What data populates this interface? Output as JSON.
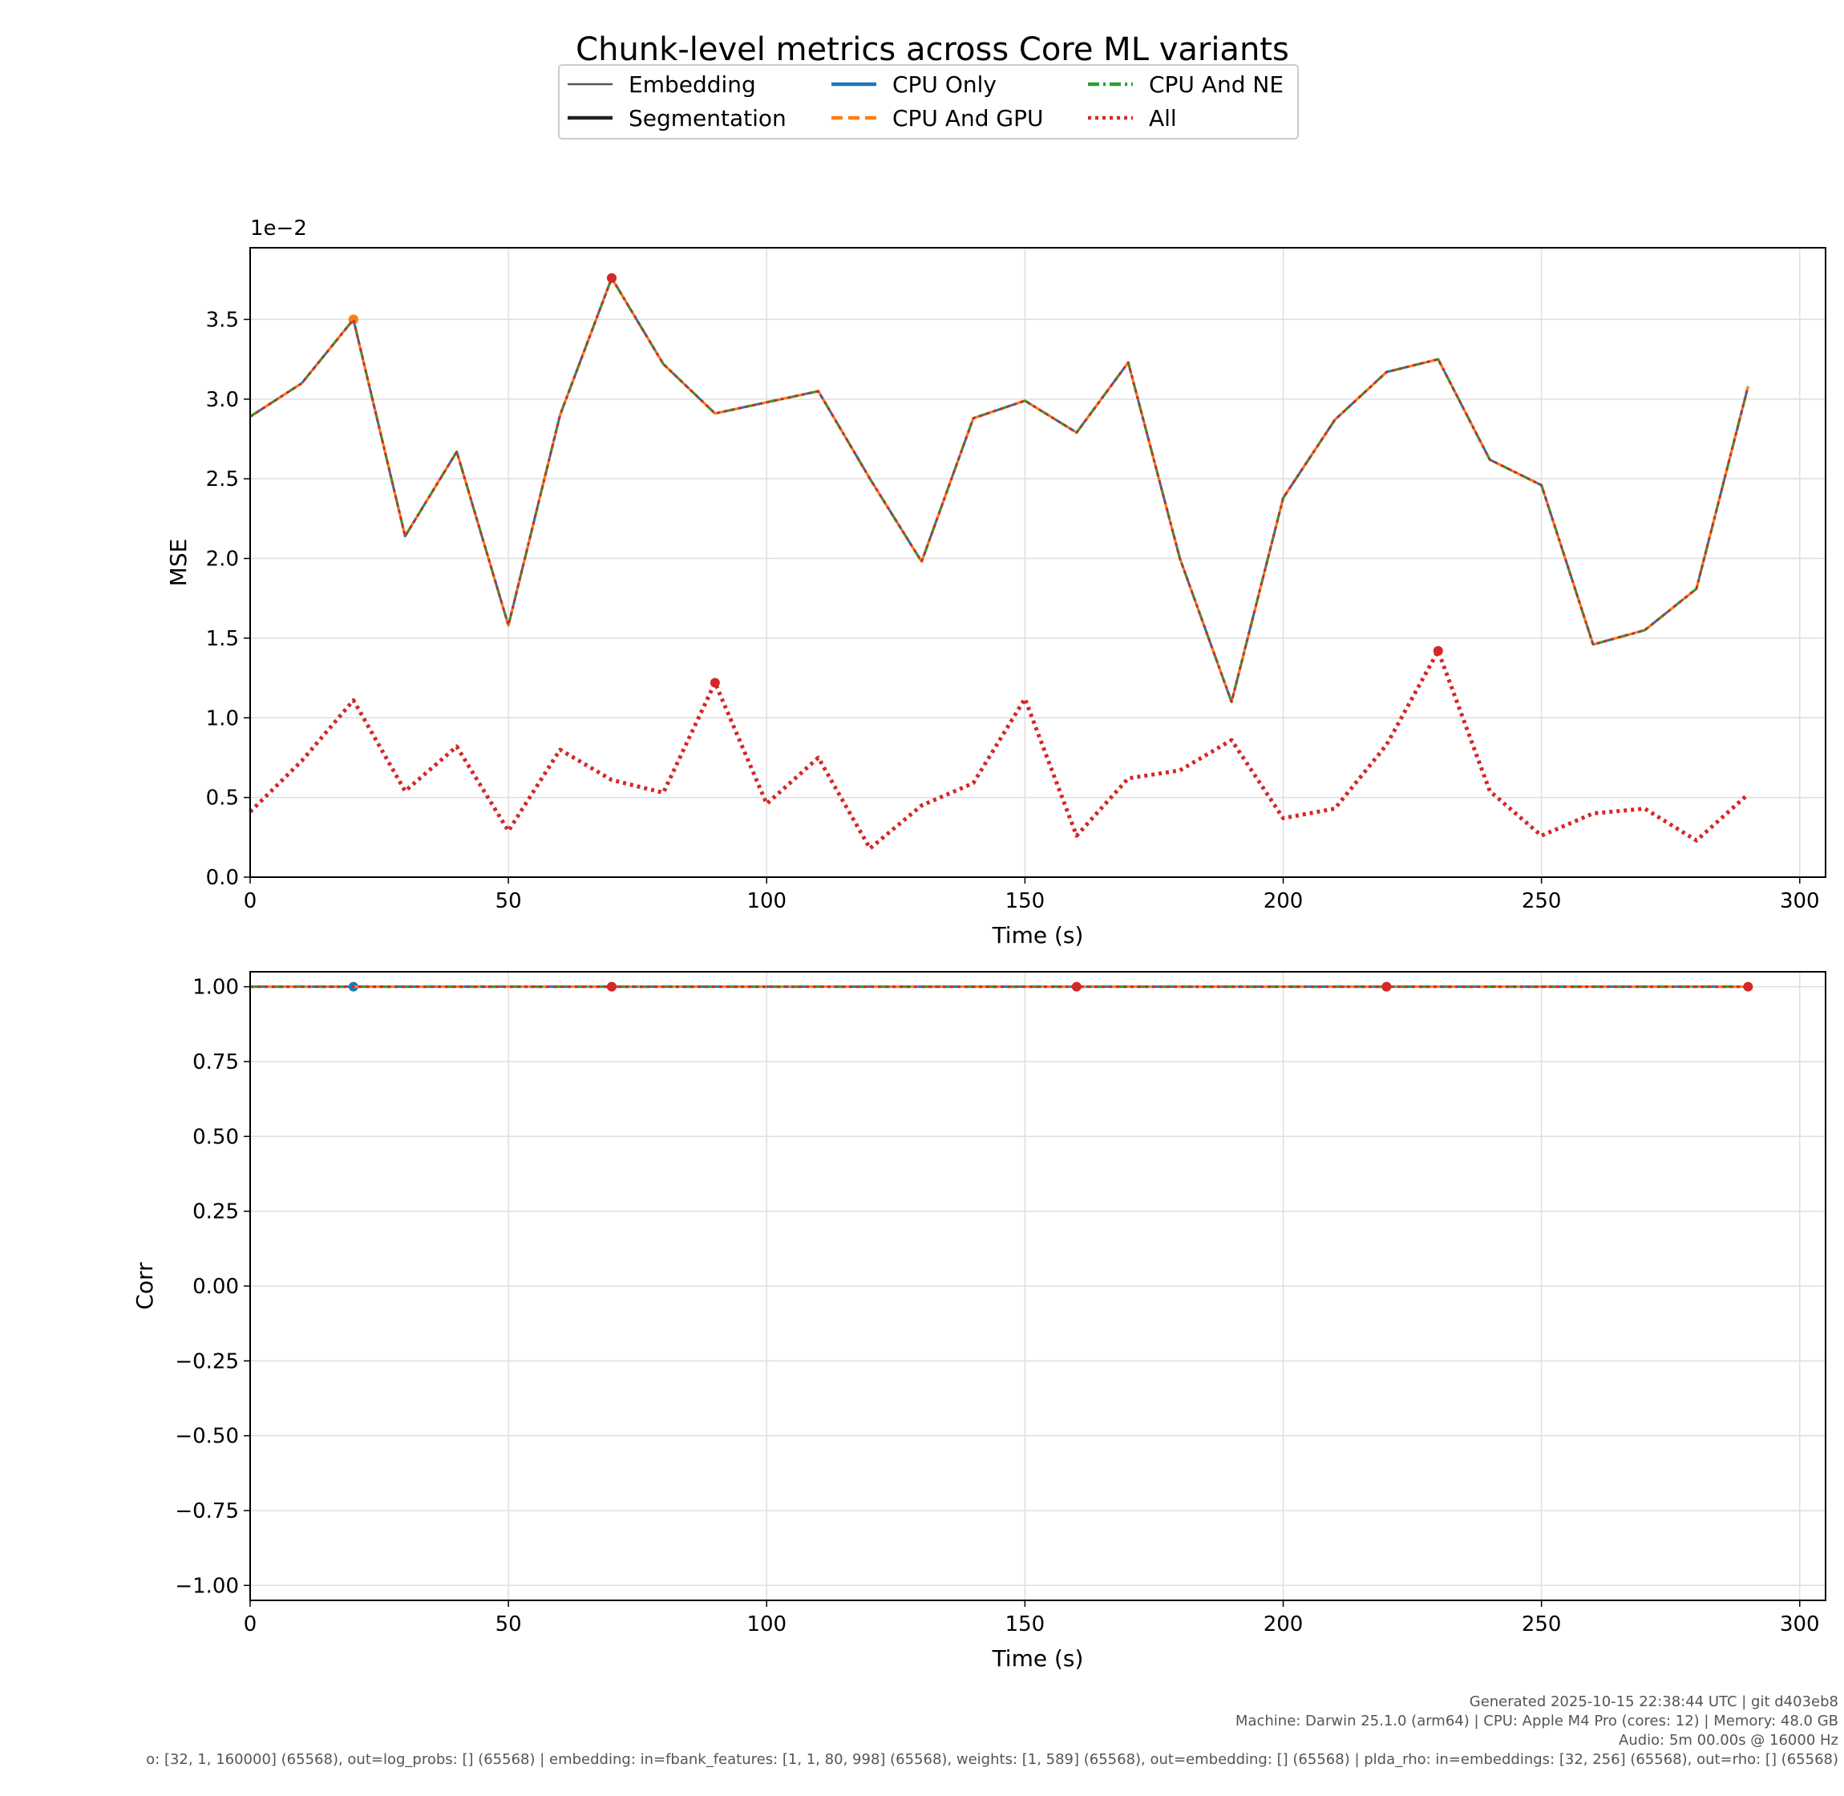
{
  "figure_title": "Chunk-level metrics across Core ML variants",
  "legend": {
    "entries": [
      {
        "label": "Embedding",
        "kind": "style",
        "style": "thin-solid"
      },
      {
        "label": "Segmentation",
        "kind": "style",
        "style": "thick-solid"
      },
      {
        "label": "CPU Only",
        "kind": "series",
        "color": "#1f77b4",
        "dash": "solid"
      },
      {
        "label": "CPU And GPU",
        "kind": "series",
        "color": "#ff7f0e",
        "dash": "dashed"
      },
      {
        "label": "CPU And NE",
        "kind": "series",
        "color": "#2ca02c",
        "dash": "dashdot"
      },
      {
        "label": "All",
        "kind": "series",
        "color": "#d62728",
        "dash": "dotted"
      }
    ]
  },
  "footer": {
    "line1": "Generated 2025-10-15 22:38:44 UTC | git d403eb8",
    "line2": "Machine: Darwin 25.1.0 (arm64) | CPU: Apple M4 Pro (cores: 12) | Memory: 48.0 GB",
    "line3": "Audio: 5m 00.00s @ 16000 Hz",
    "line4": "o: [32, 1, 160000] (65568), out=log_probs: [] (65568) | embedding: in=fbank_features: [1, 1, 80, 998] (65568), weights: [1, 589] (65568), out=embedding: [] (65568) | plda_rho: in=embeddings: [32, 256] (65568), out=rho: [] (65568)"
  },
  "chart_data": [
    {
      "type": "line",
      "xlabel": "Time (s)",
      "ylabel": "MSE",
      "offset_label": "1e−2",
      "xlim": [
        0,
        305
      ],
      "ylim": [
        0,
        3.95
      ],
      "xticks": [
        0,
        50,
        100,
        150,
        200,
        250,
        300
      ],
      "yticks": [
        0.0,
        0.5,
        1.0,
        1.5,
        2.0,
        2.5,
        3.0,
        3.5
      ],
      "ytick_labels": [
        "0.0",
        "0.5",
        "1.0",
        "1.5",
        "2.0",
        "2.5",
        "3.0",
        "3.5"
      ],
      "grid": true,
      "x": [
        0,
        10,
        20,
        30,
        40,
        50,
        60,
        70,
        80,
        90,
        100,
        110,
        120,
        130,
        140,
        150,
        160,
        170,
        180,
        190,
        200,
        210,
        220,
        230,
        240,
        250,
        260,
        270,
        280,
        290
      ],
      "series": [
        {
          "name": "CPU Only",
          "color": "#1f77b4",
          "dash": "solid",
          "width": 3,
          "values": [
            2.89,
            3.1,
            3.5,
            2.14,
            2.67,
            1.58,
            2.9,
            3.76,
            3.22,
            2.91,
            2.98,
            3.05,
            2.5,
            1.98,
            2.88,
            2.99,
            2.79,
            3.23,
            2.0,
            1.1,
            2.38,
            2.87,
            3.17,
            3.25,
            2.62,
            2.46,
            1.46,
            1.55,
            1.81,
            3.08
          ],
          "marker_x": 20
        },
        {
          "name": "CPU And GPU",
          "color": "#ff7f0e",
          "dash": "dashed",
          "width": 3,
          "values": [
            2.89,
            3.1,
            3.5,
            2.14,
            2.67,
            1.58,
            2.9,
            3.76,
            3.22,
            2.91,
            2.98,
            3.05,
            2.5,
            1.98,
            2.88,
            2.99,
            2.79,
            3.23,
            2.0,
            1.1,
            2.38,
            2.87,
            3.17,
            3.25,
            2.62,
            2.46,
            1.46,
            1.55,
            1.81,
            3.08
          ],
          "marker_x": 20
        },
        {
          "name": "CPU And NE",
          "color": "#2ca02c",
          "dash": "dashdot",
          "width": 3,
          "values": [
            2.89,
            3.1,
            3.5,
            2.14,
            2.67,
            1.58,
            2.9,
            3.76,
            3.22,
            2.91,
            2.98,
            3.05,
            2.5,
            1.98,
            2.88,
            2.99,
            2.79,
            3.23,
            2.0,
            1.1,
            2.38,
            2.87,
            3.17,
            3.25,
            2.62,
            2.46,
            1.46,
            1.55,
            1.81,
            3.08
          ],
          "marker_x": 70
        },
        {
          "name": "All",
          "color": "#d62728",
          "dash": "dotted",
          "width": 3,
          "values": [
            2.89,
            3.1,
            3.5,
            2.14,
            2.67,
            1.58,
            2.9,
            3.76,
            3.22,
            2.91,
            2.98,
            3.05,
            2.5,
            1.98,
            2.88,
            2.99,
            2.79,
            3.23,
            2.0,
            1.1,
            2.38,
            2.87,
            3.17,
            3.25,
            2.62,
            2.46,
            1.46,
            1.55,
            1.81,
            3.08
          ],
          "marker_x": 70
        },
        {
          "name": "All",
          "color": "#d62728",
          "dash": "dotted",
          "width": 5,
          "values": [
            0.41,
            0.73,
            1.11,
            0.54,
            0.82,
            0.29,
            0.8,
            0.61,
            0.53,
            1.22,
            0.46,
            0.75,
            0.18,
            0.45,
            0.59,
            1.12,
            0.26,
            0.62,
            0.67,
            0.86,
            0.37,
            0.43,
            0.83,
            1.42,
            0.54,
            0.26,
            0.4,
            0.43,
            0.23,
            0.52
          ],
          "marker_x": [
            90,
            230
          ]
        }
      ]
    },
    {
      "type": "line",
      "xlabel": "Time (s)",
      "ylabel": "Corr",
      "xlim": [
        0,
        305
      ],
      "ylim": [
        -1.05,
        1.05
      ],
      "xticks": [
        0,
        50,
        100,
        150,
        200,
        250,
        300
      ],
      "yticks": [
        -1.0,
        -0.75,
        -0.5,
        -0.25,
        0.0,
        0.25,
        0.5,
        0.75,
        1.0
      ],
      "ytick_labels": [
        "−1.00",
        "−0.75",
        "−0.50",
        "−0.25",
        "0.00",
        "0.25",
        "0.50",
        "0.75",
        "1.00"
      ],
      "grid": true,
      "x": [
        0,
        290
      ],
      "series": [
        {
          "name": "CPU Only",
          "color": "#1f77b4",
          "dash": "solid",
          "width": 3,
          "values": [
            1.0,
            1.0
          ],
          "marker_x": [
            20
          ]
        },
        {
          "name": "CPU And GPU",
          "color": "#ff7f0e",
          "dash": "dashed",
          "width": 3,
          "values": [
            1.0,
            1.0
          ],
          "marker_x": [
            70
          ]
        },
        {
          "name": "CPU And NE",
          "color": "#2ca02c",
          "dash": "dashdot",
          "width": 3,
          "values": [
            1.0,
            1.0
          ],
          "marker_x": [
            220
          ]
        },
        {
          "name": "All",
          "color": "#d62728",
          "dash": "dotted",
          "width": 3,
          "values": [
            1.0,
            1.0
          ],
          "marker_x": [
            70,
            160,
            220,
            290
          ]
        }
      ]
    }
  ]
}
